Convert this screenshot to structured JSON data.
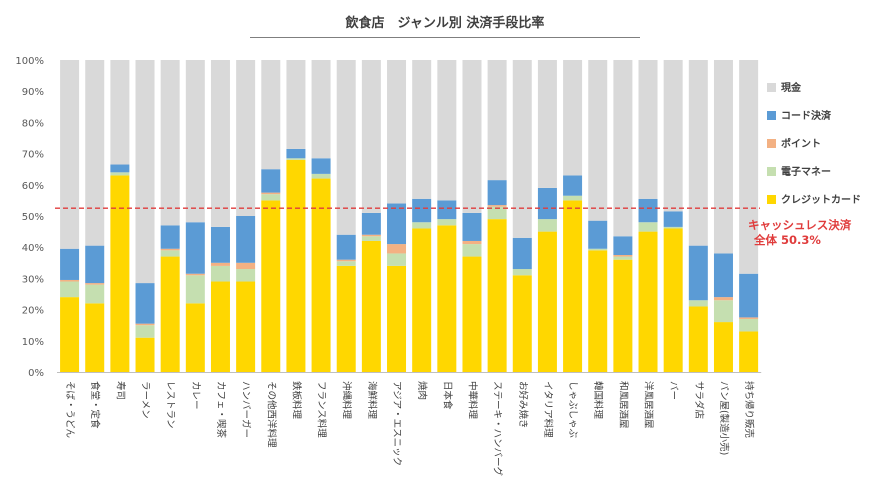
{
  "chart_data": {
    "type": "bar",
    "stacked": true,
    "title": "飲食店　ジャンル別 決済手段比率",
    "categories": [
      "そば・うどん",
      "食堂・定食",
      "寿司",
      "ラーメン",
      "レストラン",
      "カレー",
      "カフェ・喫茶",
      "ハンバーガー",
      "その他西洋料理",
      "鉄板料理",
      "フランス料理",
      "沖縄料理",
      "海鮮料理",
      "アジア・エスニック",
      "焼肉",
      "日本食",
      "中華料理",
      "ステーキ・ハンバーグ",
      "お好み焼き",
      "イタリア料理",
      "しゃぶしゃぶ",
      "韓国料理",
      "和風居酒屋",
      "洋風居酒屋",
      "バー",
      "サラダ店",
      "パン屋(製造小売)",
      "持ち帰り販売"
    ],
    "series": [
      {
        "name": "クレジットカード",
        "color": "#ffd700",
        "values": [
          24,
          22,
          63,
          11,
          37,
          22,
          29,
          29,
          55,
          68,
          62,
          34,
          42,
          34,
          46,
          47,
          37,
          49,
          31,
          45,
          55,
          39,
          36,
          45,
          46,
          21,
          16,
          13
        ]
      },
      {
        "name": "電子マネー",
        "color": "#c5dfb0",
        "values": [
          5,
          6,
          1,
          4,
          2,
          9,
          5,
          4,
          2,
          0.5,
          1.5,
          1.5,
          1.5,
          4,
          2,
          2,
          4,
          4,
          2,
          4,
          1.5,
          0.5,
          1,
          3,
          0.5,
          2,
          7,
          4
        ]
      },
      {
        "name": "ポイント",
        "color": "#f3b183",
        "values": [
          0.5,
          0.5,
          0,
          0.5,
          0.5,
          0.5,
          1,
          2,
          0.5,
          0,
          0,
          0.5,
          0.5,
          3,
          0,
          0,
          1,
          0.5,
          0,
          0,
          0,
          0,
          0.5,
          0,
          0,
          0,
          1,
          0.5
        ]
      },
      {
        "name": "コード決済",
        "color": "#5b9bd5",
        "values": [
          10,
          12,
          2.5,
          13,
          7.5,
          16.5,
          11.5,
          15,
          7.5,
          3,
          5,
          8,
          7,
          13,
          7.5,
          6,
          9,
          8,
          10,
          10,
          6.5,
          9,
          6,
          7.5,
          5,
          17.5,
          14,
          14
        ]
      },
      {
        "name": "現金",
        "color": "#d9d9d9",
        "values": [
          60.5,
          59.5,
          33.5,
          71.5,
          53,
          52,
          53.5,
          50,
          35,
          28.5,
          31.5,
          56,
          49,
          46,
          44.5,
          45,
          49,
          38.5,
          57,
          41,
          37,
          51.5,
          56.5,
          44.5,
          48.5,
          59.5,
          62,
          68.5
        ]
      }
    ],
    "ylim": [
      0,
      100
    ],
    "yticks": [
      "0%",
      "10%",
      "20%",
      "30%",
      "40%",
      "50%",
      "60%",
      "70%",
      "80%",
      "90%",
      "100%"
    ],
    "reference_line": {
      "value": 52.5,
      "color": "#e03c3c",
      "style": "dashed"
    },
    "legend_position": "right",
    "grid": false
  },
  "annotation": {
    "line1": "キャッシュレス決済",
    "line2": "全体 50.3%"
  }
}
